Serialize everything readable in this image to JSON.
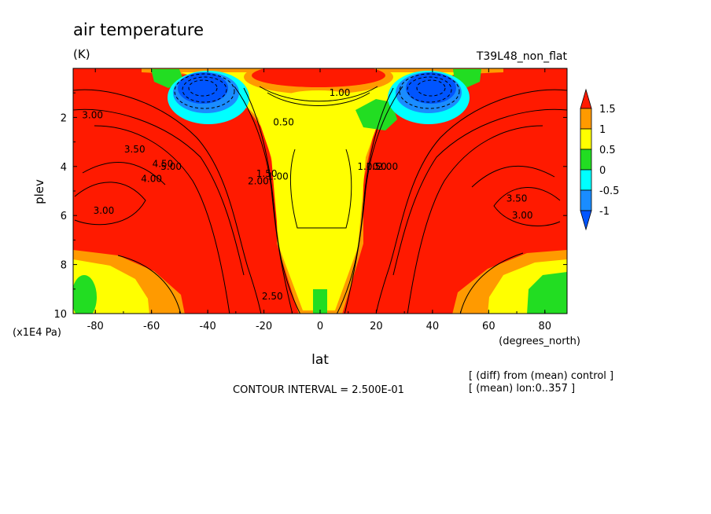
{
  "chart_data": {
    "type": "heatmap",
    "title": "air temperature",
    "subtitle": "(K)",
    "run_label": "T39L48_non_flat",
    "xlabel": "lat",
    "xunits": "(degrees_north)",
    "ylabel": "plev",
    "yunits": "(x1E4 Pa)",
    "xlim": [
      -87.9,
      87.9
    ],
    "ylim": [
      0,
      10
    ],
    "y_inverted": true,
    "xticks": [
      -80,
      -60,
      -40,
      -20,
      0,
      20,
      40,
      60,
      80
    ],
    "xtick_labels": [
      "-80",
      "-60",
      "-40",
      "-20",
      "0",
      "20",
      "40",
      "60",
      "80"
    ],
    "yticks": [
      2,
      4,
      6,
      8,
      10
    ],
    "ytick_labels": [
      "2",
      "4",
      "6",
      "8",
      "10"
    ],
    "contour_interval_text": "CONTOUR INTERVAL = 2.500E-01",
    "notes": [
      "[ (diff) from (mean) control ]",
      "[ (mean) lon:0..357 ]"
    ],
    "colorbar": {
      "labels": [
        "1.5",
        "1",
        "0.5",
        "0",
        "-0.5",
        "-1"
      ],
      "bins": [
        {
          "range": "> 1.5",
          "color": "#ff1a00"
        },
        {
          "range": "1 to 1.5",
          "color": "#ff9a00"
        },
        {
          "range": "0.5 to 1",
          "color": "#ffff00"
        },
        {
          "range": "0 to 0.5",
          "color": "#22dd22"
        },
        {
          "range": "-0.5 to 0",
          "color": "#00ffff"
        },
        {
          "range": "-1 to -0.5",
          "color": "#1a8cff"
        },
        {
          "range": "< -1",
          "color": "#0055ff"
        }
      ]
    },
    "contour_labels": [
      {
        "text": "3.00",
        "lat": -81,
        "plev": 1.9
      },
      {
        "text": "3.50",
        "lat": -66,
        "plev": 3.3
      },
      {
        "text": "4.00",
        "lat": -60,
        "plev": 4.5
      },
      {
        "text": "4.50",
        "lat": -56,
        "plev": 3.9
      },
      {
        "text": "5.00",
        "lat": -53,
        "plev": 4.0
      },
      {
        "text": "3.00",
        "lat": -77,
        "plev": 5.8
      },
      {
        "text": "1.00",
        "lat": -15,
        "plev": 4.4
      },
      {
        "text": "1.50",
        "lat": -19,
        "plev": 4.3
      },
      {
        "text": "2.00",
        "lat": -22,
        "plev": 4.6
      },
      {
        "text": "0.50",
        "lat": -13,
        "plev": 2.2
      },
      {
        "text": "1.00",
        "lat": 7,
        "plev": 1.0
      },
      {
        "text": "1.00",
        "lat": 17,
        "plev": 4.0
      },
      {
        "text": "1.50",
        "lat": 20,
        "plev": 4.0
      },
      {
        "text": "2.00",
        "lat": 24,
        "plev": 4.0
      },
      {
        "text": "3.50",
        "lat": 70,
        "plev": 5.3
      },
      {
        "text": "3.00",
        "lat": 72,
        "plev": 6.0
      },
      {
        "text": "2.50",
        "lat": -17,
        "plev": 9.3
      }
    ]
  }
}
